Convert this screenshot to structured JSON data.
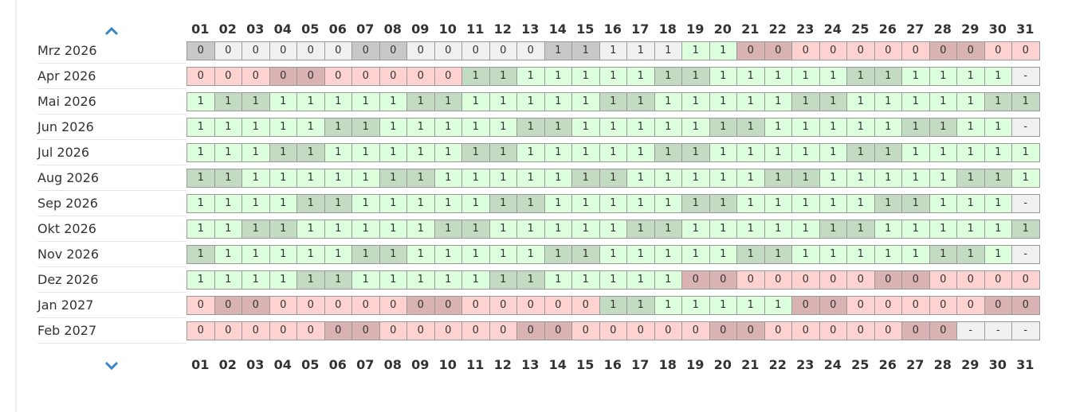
{
  "days": [
    "01",
    "02",
    "03",
    "04",
    "05",
    "06",
    "07",
    "08",
    "09",
    "10",
    "11",
    "12",
    "13",
    "14",
    "15",
    "16",
    "17",
    "18",
    "19",
    "20",
    "21",
    "22",
    "23",
    "24",
    "25",
    "26",
    "27",
    "28",
    "29",
    "30",
    "31"
  ],
  "colors": {
    "past": [
      "#f0f0f0",
      "#c8c8c8"
    ],
    "0": [
      "#ffd2d2",
      "#d9b3b3"
    ],
    "1": [
      "#dcffdc",
      "#c3dbc3"
    ],
    "-": [
      "#f0f0f0",
      "#f0f0f0"
    ]
  },
  "rows": [
    {
      "label": "Mrz 2026",
      "values": [
        "0",
        "0",
        "0",
        "0",
        "0",
        "0",
        "0",
        "0",
        "0",
        "0",
        "0",
        "0",
        "0",
        "1",
        "1",
        "1",
        "1",
        "1",
        "1",
        "1",
        "0",
        "0",
        "0",
        "0",
        "0",
        "0",
        "0",
        "0",
        "0",
        "0",
        "0"
      ],
      "states": [
        "past",
        "past",
        "past",
        "past",
        "past",
        "past",
        "past",
        "past",
        "past",
        "past",
        "past",
        "past",
        "past",
        "past",
        "past",
        "past",
        "past",
        "past",
        "1",
        "1",
        "0",
        "0",
        "0",
        "0",
        "0",
        "0",
        "0",
        "0",
        "0",
        "0",
        "0"
      ],
      "weekends": [
        1,
        7,
        8,
        14,
        15,
        21,
        22,
        28,
        29
      ]
    },
    {
      "label": "Apr 2026",
      "values": [
        "0",
        "0",
        "0",
        "0",
        "0",
        "0",
        "0",
        "0",
        "0",
        "0",
        "1",
        "1",
        "1",
        "1",
        "1",
        "1",
        "1",
        "1",
        "1",
        "1",
        "1",
        "1",
        "1",
        "1",
        "1",
        "1",
        "1",
        "1",
        "1",
        "1",
        "-"
      ],
      "weekends": [
        4,
        5,
        11,
        12,
        18,
        19,
        25,
        26
      ]
    },
    {
      "label": "Mai 2026",
      "values": [
        "1",
        "1",
        "1",
        "1",
        "1",
        "1",
        "1",
        "1",
        "1",
        "1",
        "1",
        "1",
        "1",
        "1",
        "1",
        "1",
        "1",
        "1",
        "1",
        "1",
        "1",
        "1",
        "1",
        "1",
        "1",
        "1",
        "1",
        "1",
        "1",
        "1",
        "1"
      ],
      "weekends": [
        2,
        3,
        9,
        10,
        16,
        17,
        23,
        24,
        30,
        31
      ]
    },
    {
      "label": "Jun 2026",
      "values": [
        "1",
        "1",
        "1",
        "1",
        "1",
        "1",
        "1",
        "1",
        "1",
        "1",
        "1",
        "1",
        "1",
        "1",
        "1",
        "1",
        "1",
        "1",
        "1",
        "1",
        "1",
        "1",
        "1",
        "1",
        "1",
        "1",
        "1",
        "1",
        "1",
        "1",
        "-"
      ],
      "weekends": [
        6,
        7,
        13,
        14,
        20,
        21,
        27,
        28
      ]
    },
    {
      "label": "Jul 2026",
      "values": [
        "1",
        "1",
        "1",
        "1",
        "1",
        "1",
        "1",
        "1",
        "1",
        "1",
        "1",
        "1",
        "1",
        "1",
        "1",
        "1",
        "1",
        "1",
        "1",
        "1",
        "1",
        "1",
        "1",
        "1",
        "1",
        "1",
        "1",
        "1",
        "1",
        "1",
        "1"
      ],
      "weekends": [
        4,
        5,
        11,
        12,
        18,
        19,
        25,
        26
      ]
    },
    {
      "label": "Aug 2026",
      "values": [
        "1",
        "1",
        "1",
        "1",
        "1",
        "1",
        "1",
        "1",
        "1",
        "1",
        "1",
        "1",
        "1",
        "1",
        "1",
        "1",
        "1",
        "1",
        "1",
        "1",
        "1",
        "1",
        "1",
        "1",
        "1",
        "1",
        "1",
        "1",
        "1",
        "1",
        "1"
      ],
      "weekends": [
        1,
        2,
        8,
        9,
        15,
        16,
        22,
        23,
        29,
        30
      ]
    },
    {
      "label": "Sep 2026",
      "values": [
        "1",
        "1",
        "1",
        "1",
        "1",
        "1",
        "1",
        "1",
        "1",
        "1",
        "1",
        "1",
        "1",
        "1",
        "1",
        "1",
        "1",
        "1",
        "1",
        "1",
        "1",
        "1",
        "1",
        "1",
        "1",
        "1",
        "1",
        "1",
        "1",
        "1",
        "-"
      ],
      "weekends": [
        5,
        6,
        12,
        13,
        19,
        20,
        26,
        27
      ]
    },
    {
      "label": "Okt 2026",
      "values": [
        "1",
        "1",
        "1",
        "1",
        "1",
        "1",
        "1",
        "1",
        "1",
        "1",
        "1",
        "1",
        "1",
        "1",
        "1",
        "1",
        "1",
        "1",
        "1",
        "1",
        "1",
        "1",
        "1",
        "1",
        "1",
        "1",
        "1",
        "1",
        "1",
        "1",
        "1"
      ],
      "weekends": [
        3,
        4,
        10,
        11,
        17,
        18,
        24,
        25,
        31
      ]
    },
    {
      "label": "Nov 2026",
      "values": [
        "1",
        "1",
        "1",
        "1",
        "1",
        "1",
        "1",
        "1",
        "1",
        "1",
        "1",
        "1",
        "1",
        "1",
        "1",
        "1",
        "1",
        "1",
        "1",
        "1",
        "1",
        "1",
        "1",
        "1",
        "1",
        "1",
        "1",
        "1",
        "1",
        "1",
        "-"
      ],
      "weekends": [
        1,
        7,
        8,
        14,
        15,
        21,
        22,
        28,
        29
      ]
    },
    {
      "label": "Dez 2026",
      "values": [
        "1",
        "1",
        "1",
        "1",
        "1",
        "1",
        "1",
        "1",
        "1",
        "1",
        "1",
        "1",
        "1",
        "1",
        "1",
        "1",
        "1",
        "1",
        "0",
        "0",
        "0",
        "0",
        "0",
        "0",
        "0",
        "0",
        "0",
        "0",
        "0",
        "0",
        "0"
      ],
      "weekends": [
        5,
        6,
        12,
        13,
        19,
        20,
        26,
        27
      ]
    },
    {
      "label": "Jan 2027",
      "values": [
        "0",
        "0",
        "0",
        "0",
        "0",
        "0",
        "0",
        "0",
        "0",
        "0",
        "0",
        "0",
        "0",
        "0",
        "0",
        "1",
        "1",
        "1",
        "1",
        "1",
        "1",
        "1",
        "0",
        "0",
        "0",
        "0",
        "0",
        "0",
        "0",
        "0",
        "0"
      ],
      "weekends": [
        2,
        3,
        9,
        10,
        16,
        17,
        23,
        24,
        30,
        31
      ]
    },
    {
      "label": "Feb 2027",
      "values": [
        "0",
        "0",
        "0",
        "0",
        "0",
        "0",
        "0",
        "0",
        "0",
        "0",
        "0",
        "0",
        "0",
        "0",
        "0",
        "0",
        "0",
        "0",
        "0",
        "0",
        "0",
        "0",
        "0",
        "0",
        "0",
        "0",
        "0",
        "0",
        "-",
        "-",
        "-"
      ],
      "weekends": [
        6,
        7,
        13,
        14,
        20,
        21,
        27,
        28
      ]
    }
  ]
}
